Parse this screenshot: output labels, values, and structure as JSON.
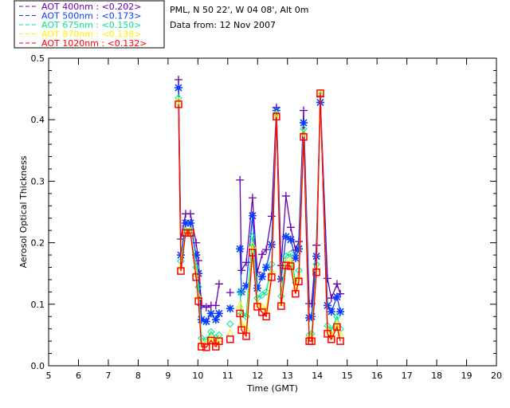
{
  "header": {
    "location": "PML, N 50 22', W 04 08', Alt 0m",
    "date_line": "Data from: 12 Nov 2007"
  },
  "chart_data": {
    "type": "line",
    "xlabel": "Time (GMT)",
    "ylabel": "Aerosol Optical Thickness",
    "xlim": [
      5,
      20
    ],
    "ylim": [
      0,
      0.5
    ],
    "xticks": [
      "5",
      "6",
      "7",
      "8",
      "9",
      "10",
      "11",
      "12",
      "13",
      "14",
      "15",
      "16",
      "17",
      "18",
      "19",
      "20"
    ],
    "yticks": [
      "0.0",
      "0.1",
      "0.2",
      "0.3",
      "0.4",
      "0.5"
    ],
    "legend_position": "top-left outside",
    "x": [
      9.35,
      9.43,
      9.59,
      9.75,
      9.94,
      10.02,
      10.12,
      10.28,
      10.44,
      10.6,
      10.71,
      11.08,
      11.41,
      11.46,
      11.62,
      11.83,
      11.99,
      12.15,
      12.29,
      12.47,
      12.63,
      12.79,
      12.95,
      13.11,
      13.27,
      13.38,
      13.54,
      13.73,
      13.81,
      13.97,
      14.1,
      14.34,
      14.47,
      14.66,
      14.77
    ],
    "segments": [
      [
        0,
        10
      ],
      [
        11,
        11
      ],
      [
        12,
        34
      ]
    ],
    "series": [
      {
        "name": "AOT  400nm : <0.202>",
        "color": "#6a00b0",
        "marker": "plus",
        "values": [
          0.465,
          0.206,
          0.247,
          0.247,
          0.2,
          0.171,
          0.098,
          0.095,
          0.098,
          0.098,
          0.133,
          0.119,
          0.302,
          0.155,
          0.168,
          0.273,
          0.152,
          0.181,
          0.189,
          0.243,
          0.42,
          0.163,
          0.276,
          0.225,
          0.188,
          0.202,
          0.415,
          0.101,
          0.101,
          0.196,
          0.437,
          0.142,
          0.11,
          0.133,
          0.117
        ]
      },
      {
        "name": "AOT  500nm : <0.173>",
        "color": "#0a3cff",
        "marker": "asterisk",
        "values": [
          0.452,
          0.18,
          0.232,
          0.232,
          0.18,
          0.15,
          0.075,
          0.072,
          0.085,
          0.075,
          0.085,
          0.093,
          0.19,
          0.12,
          0.13,
          0.244,
          0.126,
          0.145,
          0.16,
          0.197,
          0.415,
          0.141,
          0.21,
          0.205,
          0.175,
          0.19,
          0.395,
          0.078,
          0.08,
          0.178,
          0.428,
          0.098,
          0.088,
          0.112,
          0.088
        ]
      },
      {
        "name": "AOT  675nm : <0.150>",
        "color": "#00e68c",
        "marker": "diamond",
        "values": [
          0.435,
          0.17,
          0.22,
          0.22,
          0.16,
          0.128,
          0.045,
          0.042,
          0.055,
          0.045,
          0.05,
          0.068,
          0.12,
          0.085,
          0.08,
          0.21,
          0.11,
          0.115,
          0.12,
          0.165,
          0.41,
          0.113,
          0.178,
          0.182,
          0.135,
          0.155,
          0.385,
          0.05,
          0.052,
          0.165,
          0.44,
          0.065,
          0.058,
          0.08,
          0.06
        ]
      },
      {
        "name": "AOT  870nm : <0.138>",
        "color": "#ffee00",
        "marker": "triangle",
        "values": [
          0.43,
          0.16,
          0.218,
          0.218,
          0.15,
          0.112,
          0.036,
          0.035,
          0.045,
          0.036,
          0.043,
          0.052,
          0.098,
          0.068,
          0.06,
          0.195,
          0.1,
          0.095,
          0.09,
          0.152,
          0.408,
          0.102,
          0.168,
          0.17,
          0.125,
          0.145,
          0.378,
          0.045,
          0.045,
          0.158,
          0.442,
          0.058,
          0.048,
          0.068,
          0.05
        ]
      },
      {
        "name": "AOT 1020nm : <0.132>",
        "color": "#ff0000",
        "marker": "square",
        "values": [
          0.425,
          0.154,
          0.216,
          0.216,
          0.144,
          0.105,
          0.031,
          0.03,
          0.041,
          0.031,
          0.04,
          0.043,
          0.085,
          0.058,
          0.048,
          0.184,
          0.096,
          0.087,
          0.08,
          0.144,
          0.405,
          0.097,
          0.163,
          0.162,
          0.117,
          0.137,
          0.372,
          0.04,
          0.04,
          0.152,
          0.443,
          0.052,
          0.043,
          0.063,
          0.04
        ]
      }
    ]
  }
}
